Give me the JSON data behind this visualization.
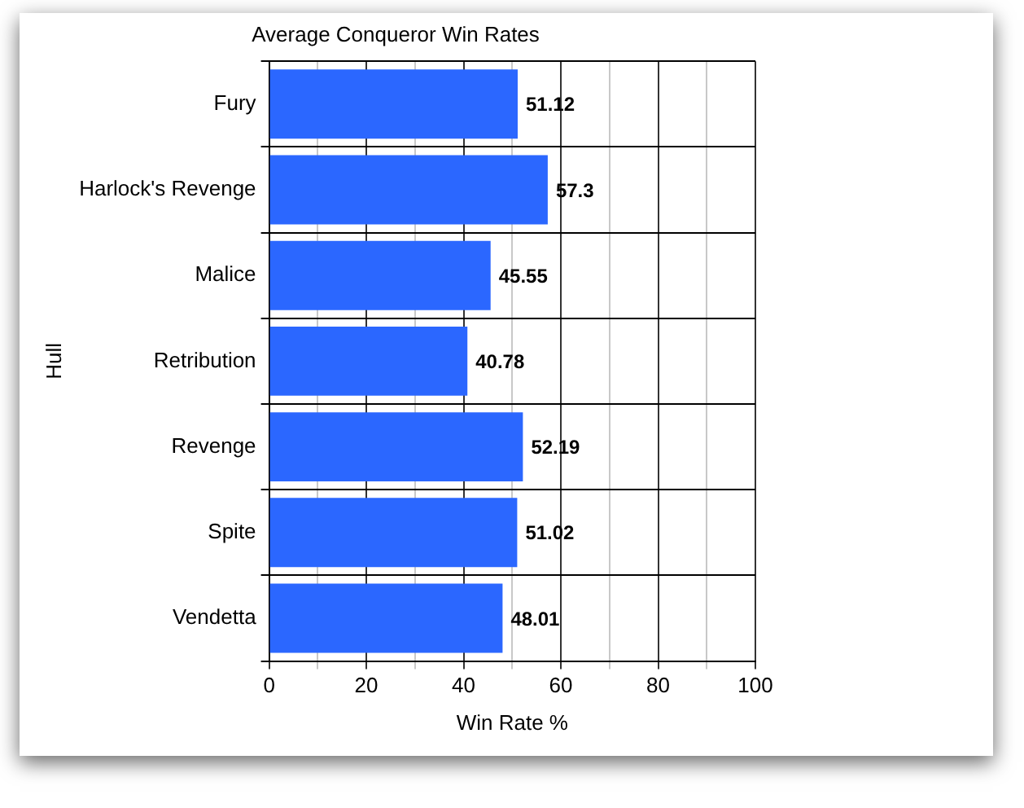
{
  "chart_data": {
    "type": "bar",
    "orientation": "horizontal",
    "title": "Average Conqueror Win Rates",
    "xlabel": "Win Rate %",
    "ylabel": "Hull",
    "categories": [
      "Fury",
      "Harlock's Revenge",
      "Malice",
      "Retribution",
      "Revenge",
      "Spite",
      "Vendetta"
    ],
    "values": [
      51.12,
      57.3,
      45.55,
      40.78,
      52.19,
      51.02,
      48.01
    ],
    "color": "#2b67ff",
    "xlim": [
      0,
      100
    ],
    "xticks": [
      0,
      {
        "value": 10,
        "label": null
      },
      20,
      {
        "value": 30,
        "label": null
      },
      40,
      {
        "value": 50,
        "label": null
      },
      60,
      {
        "value": 70,
        "label": null
      },
      80,
      {
        "value": 90,
        "label": null
      },
      100
    ],
    "grid": true,
    "data_labels": true
  }
}
